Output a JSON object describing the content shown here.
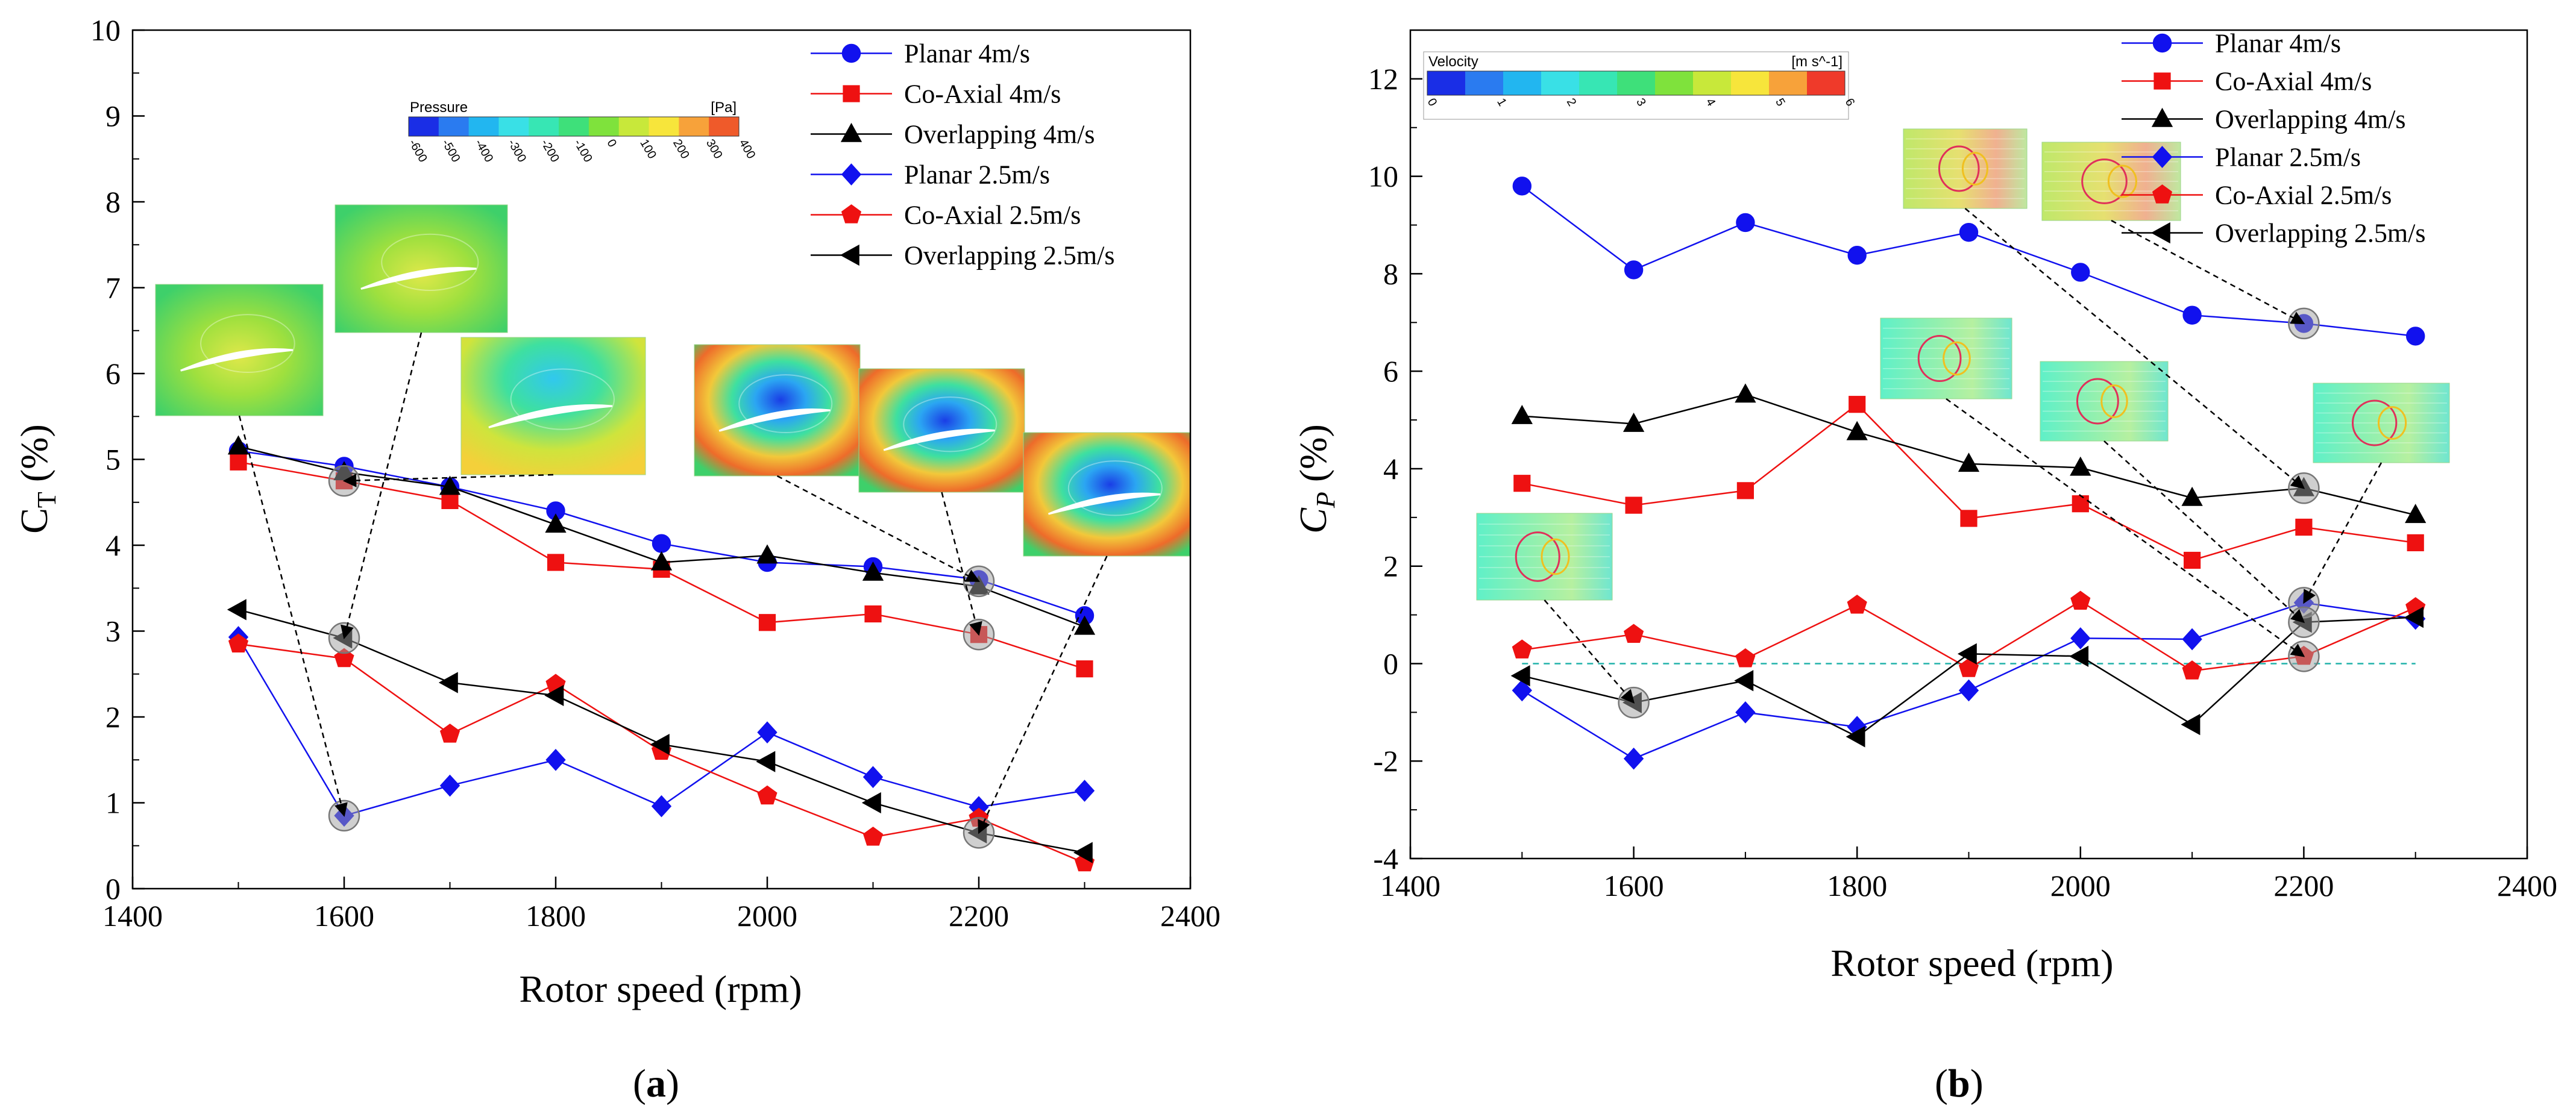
{
  "colors": {
    "blue": "#1111ee",
    "red": "#ee1111",
    "black": "#000000",
    "zero_line": "#20b2aa"
  },
  "chart_data": [
    {
      "type": "line",
      "panel_label_prefix": "(",
      "panel_label": "a",
      "panel_label_suffix": ")",
      "xlabel": "Rotor speed (rpm)",
      "ylabel_main": "C",
      "ylabel_sub": "T",
      "ylabel_tail": " (%)",
      "xlim": [
        1400,
        2400
      ],
      "ylim": [
        0,
        10
      ],
      "xticks": [
        "1400",
        "1600",
        "1800",
        "2000",
        "2200",
        "2400"
      ],
      "yticks": [
        "0",
        "1",
        "2",
        "3",
        "4",
        "5",
        "6",
        "7",
        "8",
        "9",
        "10"
      ],
      "x": [
        1500,
        1600,
        1700,
        1800,
        1900,
        2000,
        2100,
        2200,
        2300
      ],
      "series": [
        {
          "name": "Planar 4m/s",
          "color": "#1111ee",
          "marker": "circle",
          "values": [
            5.1,
            4.92,
            4.68,
            4.4,
            4.02,
            3.8,
            3.75,
            3.6,
            3.18
          ]
        },
        {
          "name": "Co-Axial 4m/s",
          "color": "#ee1111",
          "marker": "square",
          "values": [
            4.97,
            4.75,
            4.52,
            3.8,
            3.72,
            3.1,
            3.2,
            2.96,
            2.56
          ]
        },
        {
          "name": "Overlapping 4m/s",
          "color": "#000000",
          "marker": "triangle-up",
          "values": [
            5.15,
            4.85,
            4.68,
            4.24,
            3.8,
            3.88,
            3.68,
            3.52,
            3.05
          ]
        },
        {
          "name": "Planar 2.5m/s",
          "color": "#1111ee",
          "marker": "diamond",
          "values": [
            2.93,
            0.85,
            1.2,
            1.5,
            0.96,
            1.82,
            1.3,
            0.95,
            1.14
          ]
        },
        {
          "name": "Co-Axial 2.5m/s",
          "color": "#ee1111",
          "marker": "pentagon",
          "values": [
            2.85,
            2.68,
            1.8,
            2.38,
            1.6,
            1.08,
            0.6,
            0.82,
            0.3
          ]
        },
        {
          "name": "Overlapping 2.5m/s",
          "color": "#000000",
          "marker": "triangle-left",
          "values": [
            3.25,
            2.92,
            2.4,
            2.25,
            1.68,
            1.48,
            1.0,
            0.65,
            0.42
          ]
        }
      ],
      "colorbar": {
        "title": "Pressure",
        "unit": "[Pa]",
        "ticks": [
          "-600",
          "-500",
          "-400",
          "-300",
          "-200",
          "-100",
          "0",
          "100",
          "200",
          "300",
          "400"
        ],
        "colors": [
          "#1a2ee6",
          "#2a7bf0",
          "#22b6f0",
          "#39e0e6",
          "#37e6b4",
          "#3ee07a",
          "#7fe23c",
          "#c8e83a",
          "#f7e53b",
          "#f7a23a",
          "#ef5a2a"
        ]
      },
      "insets": [
        {
          "name": "pressure-contour-1500",
          "theme": "pressure-pale",
          "target_x": 1600,
          "target_y": 0.85
        },
        {
          "name": "pressure-contour-1600",
          "theme": "pressure-pale",
          "target_x": 1600,
          "target_y": 2.92
        },
        {
          "name": "pressure-contour-1700",
          "theme": "pressure-mid",
          "target_x": 1600,
          "target_y": 4.75
        },
        {
          "name": "pressure-contour-2000",
          "theme": "pressure-strong",
          "target_x": 2200,
          "target_y": 3.58
        },
        {
          "name": "pressure-contour-2200",
          "theme": "pressure-strong",
          "target_x": 2200,
          "target_y": 2.96
        },
        {
          "name": "pressure-contour-2300",
          "theme": "pressure-strong",
          "target_x": 2200,
          "target_y": 0.65
        }
      ],
      "highlights": [
        {
          "x": 1600,
          "y": 4.75
        },
        {
          "x": 1600,
          "y": 2.92
        },
        {
          "x": 1600,
          "y": 0.85
        },
        {
          "x": 2200,
          "y": 3.58
        },
        {
          "x": 2200,
          "y": 2.96
        },
        {
          "x": 2200,
          "y": 0.65
        }
      ]
    },
    {
      "type": "line",
      "panel_label_prefix": "(",
      "panel_label": "b",
      "panel_label_suffix": ")",
      "xlabel": "Rotor speed (rpm)",
      "ylabel_main": "C",
      "ylabel_sub": "P",
      "ylabel_tail": " (%)",
      "xlim": [
        1400,
        2400
      ],
      "ylim": [
        -4,
        13
      ],
      "xticks": [
        "1400",
        "1600",
        "1800",
        "2000",
        "2200",
        "2400"
      ],
      "yticks": [
        "-4",
        "-2",
        "0",
        "2",
        "4",
        "6",
        "8",
        "10",
        "12"
      ],
      "x": [
        1500,
        1600,
        1700,
        1800,
        1900,
        2000,
        2100,
        2200,
        2300
      ],
      "zero_line": 0,
      "series": [
        {
          "name": "Planar 4m/s",
          "color": "#1111ee",
          "marker": "circle",
          "values": [
            9.8,
            8.08,
            9.05,
            8.38,
            8.85,
            8.03,
            7.15,
            6.98,
            6.72
          ]
        },
        {
          "name": "Co-Axial 4m/s",
          "color": "#ee1111",
          "marker": "square",
          "values": [
            3.7,
            3.25,
            3.55,
            5.32,
            2.98,
            3.28,
            2.12,
            2.8,
            2.48
          ]
        },
        {
          "name": "Overlapping 4m/s",
          "color": "#000000",
          "marker": "triangle-up",
          "values": [
            5.08,
            4.92,
            5.52,
            4.75,
            4.1,
            4.02,
            3.4,
            3.6,
            3.05
          ]
        },
        {
          "name": "Planar 2.5m/s",
          "color": "#1111ee",
          "marker": "diamond",
          "values": [
            -0.55,
            -1.95,
            -1.0,
            -1.3,
            -0.55,
            0.52,
            0.5,
            1.25,
            0.92
          ]
        },
        {
          "name": "Co-Axial 2.5m/s",
          "color": "#ee1111",
          "marker": "pentagon",
          "values": [
            0.28,
            0.6,
            0.1,
            1.2,
            -0.1,
            1.28,
            -0.15,
            0.15,
            1.15
          ]
        },
        {
          "name": "Overlapping 2.5m/s",
          "color": "#000000",
          "marker": "triangle-left",
          "values": [
            -0.25,
            -0.8,
            -0.35,
            -1.5,
            0.2,
            0.15,
            -1.25,
            0.85,
            0.95
          ]
        }
      ],
      "colorbar": {
        "title": "Velocity",
        "unit": "[m s^-1]",
        "ticks": [
          "0",
          "1",
          "2",
          "3",
          "4",
          "5",
          "6"
        ],
        "colors": [
          "#1a2ee6",
          "#2a7bf0",
          "#22b6f0",
          "#39e0e6",
          "#37e6b4",
          "#3ee07a",
          "#7fe23c",
          "#c8e83a",
          "#f7e53b",
          "#f7a23a",
          "#ef3a2a"
        ]
      },
      "insets": [
        {
          "name": "velocity-contour-1500",
          "theme": "velocity",
          "target_x": 1600,
          "target_y": -0.8
        },
        {
          "name": "velocity-contour-1800",
          "theme": "velocity",
          "target_x": 2200,
          "target_y": 0.15
        },
        {
          "name": "velocity-contour-1900",
          "theme": "velocity-warm",
          "target_x": 2200,
          "target_y": 3.6
        },
        {
          "name": "velocity-contour-2000",
          "theme": "velocity-warm",
          "target_x": 2200,
          "target_y": 6.98
        },
        {
          "name": "velocity-contour-2050",
          "theme": "velocity",
          "target_x": 2200,
          "target_y": 0.85
        },
        {
          "name": "velocity-contour-2300",
          "theme": "velocity",
          "target_x": 2200,
          "target_y": 1.25
        }
      ],
      "highlights": [
        {
          "x": 1600,
          "y": -0.8
        },
        {
          "x": 2200,
          "y": 6.98
        },
        {
          "x": 2200,
          "y": 3.6
        },
        {
          "x": 2200,
          "y": 1.25
        },
        {
          "x": 2200,
          "y": 0.85
        },
        {
          "x": 2200,
          "y": 0.15
        }
      ]
    }
  ]
}
